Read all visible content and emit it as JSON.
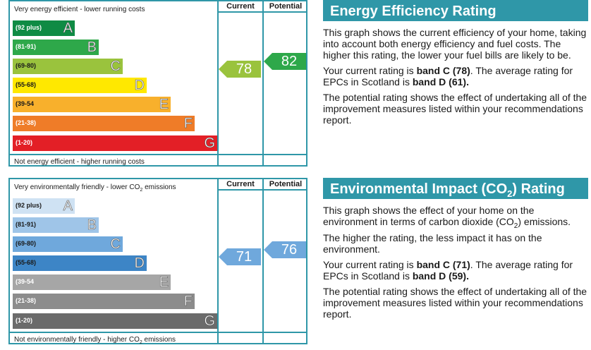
{
  "charts": [
    {
      "top_text": "Very energy efficient - lower running costs",
      "bottom_text": "Not energy efficient - higher running costs",
      "col_current": "Current",
      "col_potential": "Potential",
      "bands": [
        {
          "range": "(92 plus)",
          "letter": "A",
          "color": "#0f8b44"
        },
        {
          "range": "(81-91)",
          "letter": "B",
          "color": "#2ea84a"
        },
        {
          "range": "(69-80)",
          "letter": "C",
          "color": "#9ac33d"
        },
        {
          "range": "(55-68)",
          "letter": "D",
          "color": "#ffe800"
        },
        {
          "range": "(39-54",
          "letter": "E",
          "color": "#f8b02c"
        },
        {
          "range": "(21-38)",
          "letter": "F",
          "color": "#ef7c28"
        },
        {
          "range": "(1-20)",
          "letter": "G",
          "color": "#e31f26"
        }
      ],
      "current": {
        "value": "78",
        "color": "#9ac33d"
      },
      "potential": {
        "value": "82",
        "color": "#2ea84a"
      }
    },
    {
      "top_text": "Very environmentally friendly - lower CO",
      "top_text_sub": "2",
      "top_text_after": " emissions",
      "bottom_text": "Not environmentally friendly - higher CO",
      "bottom_text_sub": "2",
      "bottom_text_after": " emissions",
      "col_current": "Current",
      "col_potential": "Potential",
      "bands": [
        {
          "range": "(92 plus)",
          "letter": "A",
          "color": "#cfe2f3"
        },
        {
          "range": "(81-91)",
          "letter": "B",
          "color": "#9fc5e8"
        },
        {
          "range": "(69-80)",
          "letter": "C",
          "color": "#6fa8dc"
        },
        {
          "range": "(55-68)",
          "letter": "D",
          "color": "#3d85c6"
        },
        {
          "range": "(39-54",
          "letter": "E",
          "color": "#a6a6a6"
        },
        {
          "range": "(21-38)",
          "letter": "F",
          "color": "#8c8c8c"
        },
        {
          "range": "(1-20)",
          "letter": "G",
          "color": "#6b6b6b"
        }
      ],
      "current": {
        "value": "71",
        "color": "#6fa8dc"
      },
      "potential": {
        "value": "76",
        "color": "#6fa8dc"
      }
    }
  ],
  "chart_data": [
    {
      "type": "table",
      "title": "Energy Efficiency Rating",
      "categories": [
        "A",
        "B",
        "C",
        "D",
        "E",
        "F",
        "G"
      ],
      "ranges": [
        "(92 plus)",
        "(81-91)",
        "(69-80)",
        "(55-68)",
        "(39-54",
        "(21-38)",
        "(1-20)"
      ],
      "current": 78,
      "potential": 82
    },
    {
      "type": "table",
      "title": "Environmental Impact (CO2) Rating",
      "categories": [
        "A",
        "B",
        "C",
        "D",
        "E",
        "F",
        "G"
      ],
      "ranges": [
        "(92 plus)",
        "(81-91)",
        "(69-80)",
        "(55-68)",
        "(39-54",
        "(21-38)",
        "(1-20)"
      ],
      "current": 71,
      "potential": 76
    }
  ],
  "panels": [
    {
      "title": "Energy Efficiency Rating",
      "p1": "This graph shows the current efficiency of your home, taking into account both energy efficiency and fuel costs. The higher this rating, the lower your fuel bills are likely to be.",
      "p2_pre": "Your current rating is ",
      "p2_b1": "band C (78)",
      "p2_mid": ". The average rating for EPCs in Scotland is ",
      "p2_b2": "band D (61).",
      "p3": "The potential rating shows the effect of undertaking all of the improvement measures listed within your recommendations report."
    },
    {
      "title_pre": "Environmental Impact (CO",
      "title_sub": "2",
      "title_post": ") Rating",
      "p1_pre": "This graph shows the effect of your home on the environment in terms of carbon dioxide (CO",
      "p1_sub": "2",
      "p1_post": ") emissions. The higher the rating, the less impact it has on the environment.",
      "p2_pre": "Your current rating is ",
      "p2_b1": "band C (71)",
      "p2_mid": ". The average rating for EPCs in Scotland is ",
      "p2_b2": "band D (59).",
      "p3": "The potential rating shows the effect of undertaking all of the improvement measures listed within your recommendations report."
    }
  ]
}
